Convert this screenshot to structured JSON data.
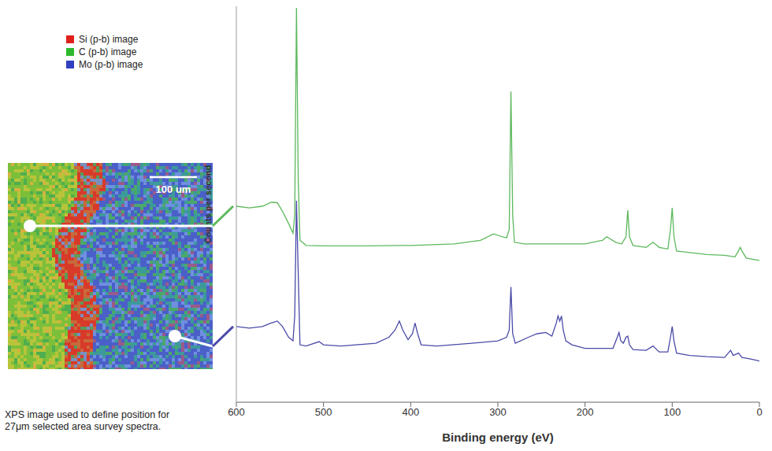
{
  "image": {
    "legend": [
      {
        "label": "Si (p-b) image",
        "color": "#e0201b"
      },
      {
        "label": "C (p-b) image",
        "color": "#2db82d"
      },
      {
        "label": "Mo (p-b) image",
        "color": "#3040c0"
      }
    ],
    "scale_bar": "100 um"
  },
  "caption": "XPS image used to define position for 27μm selected area survey spectra.",
  "chart_data": {
    "type": "line",
    "xlabel": "Binding energy (eV)",
    "ylabel": "Counts per second",
    "xlim": [
      600,
      0
    ],
    "xticks": [
      600,
      500,
      400,
      300,
      200,
      100,
      0
    ],
    "ylim": [
      0,
      100
    ],
    "tick_labels": "x",
    "grid": false,
    "series": [
      {
        "color": "#5cb85c",
        "x": [
          600,
          585,
          570,
          560,
          553,
          547,
          540,
          535,
          533,
          531,
          529,
          527,
          520,
          500,
          450,
          400,
          350,
          320,
          305,
          295,
          290,
          287,
          285,
          283,
          281,
          270,
          250,
          200,
          180,
          175,
          165,
          158,
          153,
          151,
          149,
          145,
          130,
          122,
          115,
          105,
          102,
          100,
          98,
          95,
          80,
          60,
          40,
          28,
          24,
          22,
          20,
          15,
          5,
          0
        ],
        "values": [
          49.5,
          49.1,
          49.5,
          50.5,
          50.4,
          48.2,
          45.1,
          42.7,
          47.3,
          99.6,
          56.4,
          40.9,
          39.6,
          39.5,
          39.5,
          39.6,
          40,
          40.9,
          42.5,
          41.8,
          41.5,
          43.6,
          78.5,
          47.3,
          40.4,
          40,
          40,
          40,
          40.9,
          41.8,
          40.4,
          40,
          41.8,
          48.5,
          41.8,
          39.6,
          39.1,
          40.4,
          39.1,
          38.7,
          43.6,
          49.1,
          41.8,
          38.2,
          37.8,
          37.3,
          37.1,
          36.7,
          38.2,
          39.1,
          38.2,
          36.4,
          36,
          35.8
        ]
      },
      {
        "color": "#4a4aa8",
        "x": [
          600,
          585,
          570,
          560,
          553,
          547,
          540,
          535,
          533,
          531,
          529,
          527,
          520,
          505,
          500,
          480,
          440,
          425,
          418,
          413,
          409,
          403,
          398,
          395,
          392,
          388,
          370,
          330,
          300,
          290,
          287,
          285,
          283,
          280,
          265,
          255,
          245,
          238,
          233,
          231,
          229,
          227,
          225,
          222,
          215,
          200,
          175,
          168,
          163,
          161,
          159,
          156,
          153,
          151,
          149,
          145,
          130,
          122,
          115,
          105,
          102,
          100,
          98,
          95,
          80,
          60,
          40,
          33,
          30,
          24,
          20,
          10,
          0
        ],
        "values": [
          19.1,
          18.7,
          19.1,
          20,
          20.5,
          19.1,
          16.4,
          15.5,
          21.8,
          50.9,
          32.7,
          14.5,
          14.2,
          15.3,
          14.5,
          14.2,
          14.9,
          16.4,
          18.2,
          20.5,
          18.2,
          15.8,
          17.3,
          20,
          17.3,
          14.5,
          14.2,
          14.9,
          15.5,
          16.4,
          18.2,
          29.1,
          17.3,
          14.9,
          16.4,
          17.3,
          17.6,
          16.7,
          20,
          21.8,
          20.5,
          21.8,
          18.2,
          15.5,
          14.5,
          13.6,
          13.6,
          13.6,
          16.4,
          17.6,
          15.5,
          14.9,
          16.4,
          16.7,
          14.5,
          13.3,
          13.1,
          14.2,
          12.7,
          12.7,
          16.4,
          19.1,
          15.5,
          12.4,
          11.8,
          11.5,
          11.3,
          13.1,
          11.8,
          12.4,
          11.3,
          10.9,
          10.4
        ]
      }
    ]
  }
}
